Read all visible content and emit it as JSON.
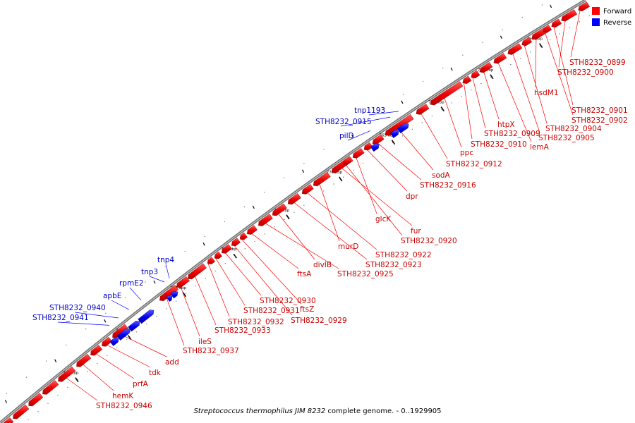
{
  "legend": [
    {
      "label": "Forward",
      "color": "#ff0000"
    },
    {
      "label": "Reverse",
      "color": "#0000ff"
    }
  ],
  "caption": {
    "organism": "Streptococcus thermophilus JIM 8232",
    "rest": " complete genome. - 0..1929905"
  },
  "ticks": [
    "750 kbp",
    "755 kbp",
    "760 kbp",
    "765 kbp",
    "770 kbp",
    "775 kbp",
    "780 kbp",
    "785 kbp",
    "790 kbp",
    "795 kbp"
  ],
  "forward_labels": [
    "STH8232_0899",
    "STH8232_0900",
    "hsdM1",
    "STH8232_0901",
    "STH8232_0902",
    "STH8232_0904",
    "STH8232_0905",
    "lemA",
    "htpX",
    "STH8232_0909",
    "STH8232_0910",
    "ppc",
    "STH8232_0912",
    "sodA",
    "STH8232_0916",
    "dpr",
    "glcK",
    "fur",
    "STH8232_0920",
    "murD",
    "STH8232_0922",
    "STH8232_0923",
    "divIB",
    "STH8232_0925",
    "ftsA",
    "ftsZ",
    "STH8232_0929",
    "STH8232_0930",
    "STH8232_0931",
    "STH8232_0932",
    "STH8232_0933",
    "ileS",
    "STH8232_0937",
    "add",
    "tdk",
    "prfA",
    "hemK",
    "STH8232_0946"
  ],
  "reverse_labels": [
    "tnp1193",
    "STH8232_0915",
    "pilD",
    "tnp4",
    "tnp3",
    "rpmE2",
    "apbE",
    "STH8232_0940",
    "STH8232_0941"
  ],
  "colors": {
    "forward": "#ff0000",
    "reverse": "#0000ff",
    "backbone": "#808080"
  }
}
